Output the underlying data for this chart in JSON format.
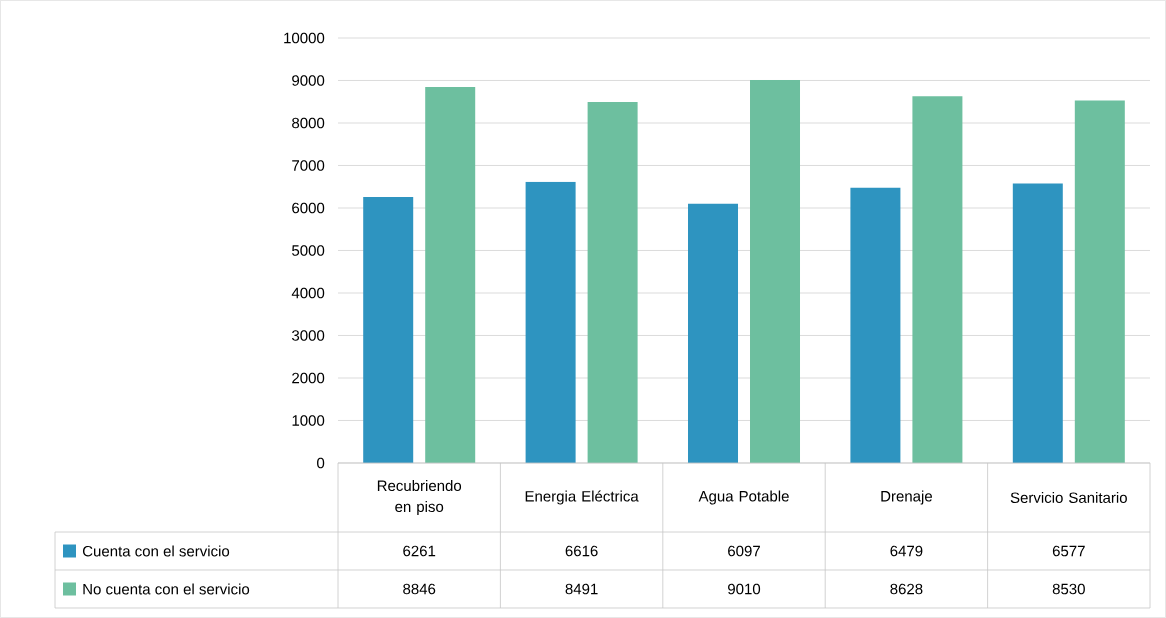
{
  "chart_data": {
    "type": "bar",
    "categories": [
      "Recubriendo en piso",
      "Energia Eléctrica",
      "Agua Potable",
      "Drenaje",
      "Servicio Sanitario"
    ],
    "series": [
      {
        "name": "Cuenta con el servicio",
        "color": "#2e94c0",
        "values": [
          6261,
          6616,
          6097,
          6479,
          6577
        ]
      },
      {
        "name": "No cuenta con el servicio",
        "color": "#6dbf9f",
        "values": [
          8846,
          8491,
          9010,
          8628,
          8530
        ]
      }
    ],
    "ylim": [
      0,
      10000
    ],
    "yticks": [
      0,
      1000,
      2000,
      3000,
      4000,
      5000,
      6000,
      7000,
      8000,
      9000,
      10000
    ],
    "grid": "y",
    "legend": "bottom",
    "data_labels": true
  }
}
